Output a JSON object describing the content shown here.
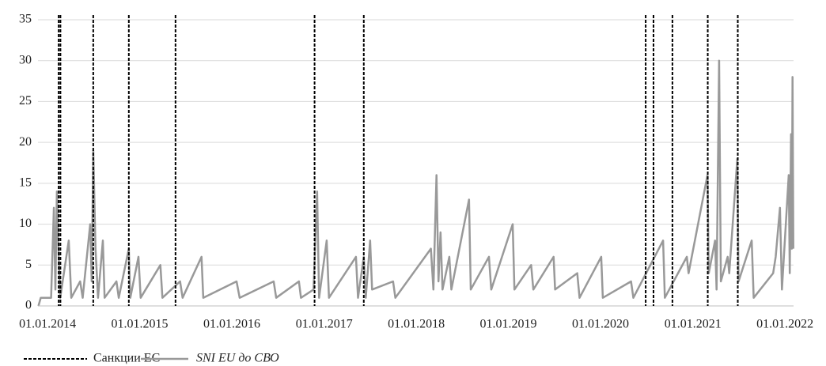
{
  "chart_data": {
    "type": "line",
    "x": [
      "2013-11-26",
      "2013-12-05",
      "2014-01-15",
      "2014-01-26",
      "2014-02-01",
      "2014-02-07",
      "2014-02-14",
      "2014-02-20",
      "2014-03-26",
      "2014-04-05",
      "2014-05-10",
      "2014-05-20",
      "2014-06-19",
      "2014-06-25",
      "2014-07-01",
      "2014-07-10",
      "2014-07-20",
      "2014-08-08",
      "2014-08-15",
      "2014-10-01",
      "2014-10-10",
      "2014-11-19",
      "2014-11-25",
      "2014-12-27",
      "2015-01-05",
      "2015-03-24",
      "2015-04-01",
      "2015-06-10",
      "2015-06-20",
      "2015-09-03",
      "2015-09-10",
      "2016-01-20",
      "2016-02-01",
      "2016-06-15",
      "2016-06-25",
      "2016-09-23",
      "2016-10-01",
      "2016-11-20",
      "2016-12-04",
      "2016-12-12",
      "2017-01-11",
      "2017-01-20",
      "2017-05-07",
      "2017-05-15",
      "2017-06-07",
      "2017-06-15",
      "2017-07-02",
      "2017-07-10",
      "2017-10-01",
      "2017-10-10",
      "2018-02-28",
      "2018-03-10",
      "2018-03-22",
      "2018-03-30",
      "2018-04-07",
      "2018-04-15",
      "2018-05-12",
      "2018-05-20",
      "2018-07-29",
      "2018-08-05",
      "2018-10-16",
      "2018-10-25",
      "2019-01-18",
      "2019-01-25",
      "2019-04-01",
      "2019-04-10",
      "2019-06-29",
      "2019-07-05",
      "2019-10-01",
      "2019-10-10",
      "2020-01-04",
      "2020-01-10",
      "2020-05-01",
      "2020-05-10",
      "2020-09-05",
      "2020-09-12",
      "2020-12-08",
      "2020-12-15",
      "2021-02-28",
      "2021-03-05",
      "2021-03-30",
      "2021-04-05",
      "2021-04-15",
      "2021-04-22",
      "2021-05-19",
      "2021-05-25",
      "2021-06-26",
      "2021-07-01",
      "2021-08-22",
      "2021-08-30",
      "2021-11-15",
      "2021-11-25",
      "2021-12-12",
      "2021-12-20",
      "2022-01-16",
      "2022-01-20",
      "2022-01-25",
      "2022-01-28",
      "2022-01-31",
      "2022-02-03"
    ],
    "series": [
      {
        "name": "SNI EU до СВО",
        "color": "#999999",
        "values": [
          0,
          1,
          1,
          12,
          2,
          14,
          6,
          1,
          8,
          1,
          3,
          1,
          10,
          3,
          19,
          7,
          1,
          8,
          1,
          3,
          1,
          7,
          1,
          6,
          1,
          5,
          1,
          3,
          1,
          6,
          1,
          3,
          1,
          3,
          1,
          3,
          1,
          2,
          14,
          1,
          8,
          1,
          6,
          1,
          6,
          1,
          8,
          2,
          3,
          1,
          7,
          2,
          16,
          3,
          9,
          2,
          6,
          2,
          13,
          2,
          6,
          2,
          10,
          2,
          5,
          2,
          6,
          2,
          4,
          1,
          6,
          1,
          3,
          1,
          8,
          1,
          6,
          4,
          16,
          4,
          8,
          2,
          30,
          3,
          6,
          4,
          18,
          3,
          8,
          1,
          4,
          6,
          12,
          2,
          16,
          4,
          21,
          7,
          28,
          7
        ]
      }
    ],
    "vlines": {
      "name": "Санкции ЕС",
      "color": "#000000",
      "dates": [
        "2014-02-14",
        "2014-02-21",
        "2014-07-01",
        "2014-11-19",
        "2015-05-23",
        "2016-11-24",
        "2017-06-07",
        "2020-06-28",
        "2020-07-29",
        "2020-10-12",
        "2021-03-01",
        "2021-06-28"
      ]
    },
    "xlim": [
      "2013-11-24",
      "2022-02-04"
    ],
    "xticks": [
      {
        "value": "2014-01-01",
        "label": "01.01.2014"
      },
      {
        "value": "2015-01-01",
        "label": "01.01.2015"
      },
      {
        "value": "2016-01-01",
        "label": "01.01.2016"
      },
      {
        "value": "2017-01-01",
        "label": "01.01.2017"
      },
      {
        "value": "2018-01-01",
        "label": "01.01.2018"
      },
      {
        "value": "2019-01-01",
        "label": "01.01.2019"
      },
      {
        "value": "2020-01-01",
        "label": "01.01.2020"
      },
      {
        "value": "2021-01-01",
        "label": "01.01.2021"
      },
      {
        "value": "2022-01-01",
        "label": "01.01.2022"
      }
    ],
    "ylim": [
      0,
      35
    ],
    "yticks": [
      0,
      5,
      10,
      15,
      20,
      25,
      30,
      35
    ],
    "grid": true
  }
}
